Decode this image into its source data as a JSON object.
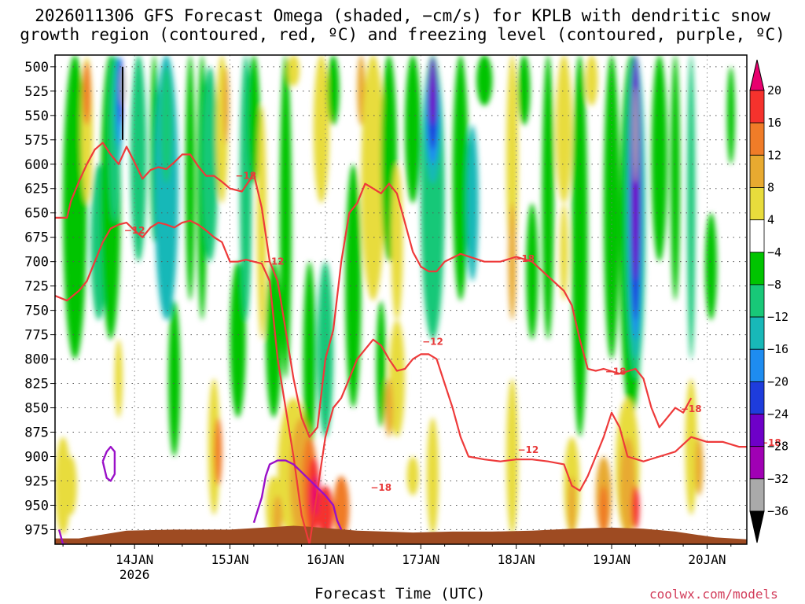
{
  "title_line1": "2026011306 GFS Forecast Omega (shaded, −cm/s) for KPLB with dendritic snow",
  "title_line2": "growth region (contoured, red, ºC) and freezing level (contoured, purple, ºC)",
  "x_axis_title": "Forecast Time (UTC)",
  "credit": "coolwx.com/models",
  "chart_data": {
    "type": "heatmap",
    "title": "2026011306 GFS Forecast Omega (shaded, −cm/s) for KPLB with dendritic snow growth region (contoured, red, ºC) and freezing level (contoured, purple, ºC)",
    "xlabel": "Forecast Time (UTC)",
    "ylabel": "",
    "x_ticks": [
      "14JAN",
      "15JAN",
      "16JAN",
      "17JAN",
      "18JAN",
      "19JAN",
      "20JAN"
    ],
    "x_tick_year": "2026",
    "x_range_hours": [
      -20,
      154
    ],
    "y_ticks": [
      500,
      525,
      550,
      575,
      600,
      625,
      650,
      675,
      700,
      725,
      750,
      775,
      800,
      825,
      850,
      875,
      900,
      925,
      950,
      975
    ],
    "y_range_hpa": [
      488,
      990
    ],
    "grid": true,
    "colorbar": {
      "labels": [
        "20",
        "16",
        "12",
        "8",
        "4",
        "−4",
        "−8",
        "−12",
        "−16",
        "−20",
        "−24",
        "−28",
        "−32",
        "−36"
      ],
      "colors": [
        "#e8006e",
        "#f5322d",
        "#f07c28",
        "#e8aa30",
        "#e8dc3c",
        "#ffffff",
        "#00c400",
        "#18c878",
        "#18b8b8",
        "#1e8cf0",
        "#1e3cdc",
        "#6e00c8",
        "#a000b4",
        "#aaaaaa",
        "#000000"
      ]
    },
    "contour_labels": [
      {
        "text": "−18",
        "x_hours": 28,
        "p": 612
      },
      {
        "text": "−12",
        "x_hours": 0,
        "p": 668
      },
      {
        "text": "−12",
        "x_hours": 35,
        "p": 700
      },
      {
        "text": "−18",
        "x_hours": 98,
        "p": 697
      },
      {
        "text": "−12",
        "x_hours": 75,
        "p": 782
      },
      {
        "text": "−18",
        "x_hours": 121,
        "p": 813
      },
      {
        "text": "−18",
        "x_hours": 140,
        "p": 851
      },
      {
        "text": "−12",
        "x_hours": 99,
        "p": 893
      },
      {
        "text": "−18",
        "x_hours": 62,
        "p": 932
      },
      {
        "text": "−18",
        "x_hours": 160,
        "p": 886
      }
    ],
    "dgz_contours": {
      "upper": [
        [
          -20,
          655
        ],
        [
          -17,
          655
        ],
        [
          -16,
          638
        ],
        [
          -14,
          618
        ],
        [
          -12,
          600
        ],
        [
          -10,
          585
        ],
        [
          -8,
          578
        ],
        [
          -6,
          590
        ],
        [
          -4,
          600
        ],
        [
          -2,
          582
        ],
        [
          0,
          598
        ],
        [
          2,
          615
        ],
        [
          4,
          606
        ],
        [
          6,
          603
        ],
        [
          8,
          605
        ],
        [
          10,
          598
        ],
        [
          12,
          590
        ],
        [
          14,
          590
        ],
        [
          16,
          602
        ],
        [
          18,
          612
        ],
        [
          20,
          612
        ],
        [
          22,
          618
        ],
        [
          24,
          625
        ],
        [
          27,
          628
        ],
        [
          30,
          610
        ],
        [
          32,
          645
        ],
        [
          34,
          700
        ],
        [
          36,
          720
        ],
        [
          38,
          770
        ],
        [
          40,
          820
        ],
        [
          42,
          860
        ],
        [
          44,
          880
        ],
        [
          46,
          870
        ],
        [
          48,
          800
        ],
        [
          50,
          770
        ],
        [
          52,
          700
        ],
        [
          54,
          650
        ],
        [
          56,
          640
        ],
        [
          58,
          620
        ],
        [
          60,
          625
        ],
        [
          62,
          630
        ],
        [
          64,
          620
        ],
        [
          66,
          630
        ],
        [
          68,
          660
        ],
        [
          70,
          690
        ],
        [
          72,
          705
        ],
        [
          74,
          710
        ],
        [
          76,
          710
        ],
        [
          78,
          700
        ],
        [
          82,
          692
        ],
        [
          88,
          700
        ],
        [
          92,
          700
        ],
        [
          96,
          695
        ],
        [
          100,
          700
        ],
        [
          104,
          715
        ],
        [
          108,
          730
        ],
        [
          110,
          745
        ],
        [
          112,
          780
        ],
        [
          114,
          810
        ],
        [
          116,
          812
        ],
        [
          118,
          810
        ],
        [
          122,
          815
        ],
        [
          126,
          810
        ],
        [
          128,
          820
        ],
        [
          130,
          850
        ],
        [
          132,
          870
        ],
        [
          134,
          860
        ],
        [
          136,
          850
        ],
        [
          138,
          855
        ],
        [
          140,
          840
        ]
      ],
      "lower": [
        [
          -20,
          735
        ],
        [
          -17,
          740
        ],
        [
          -14,
          730
        ],
        [
          -12,
          720
        ],
        [
          -10,
          700
        ],
        [
          -8,
          680
        ],
        [
          -6,
          666
        ],
        [
          -4,
          662
        ],
        [
          -2,
          660
        ],
        [
          0,
          668
        ],
        [
          2,
          675
        ],
        [
          4,
          665
        ],
        [
          6,
          660
        ],
        [
          8,
          662
        ],
        [
          10,
          665
        ],
        [
          12,
          660
        ],
        [
          14,
          658
        ],
        [
          16,
          662
        ],
        [
          18,
          668
        ],
        [
          20,
          675
        ],
        [
          22,
          680
        ],
        [
          24,
          700
        ],
        [
          26,
          700
        ],
        [
          28,
          698
        ],
        [
          30,
          700
        ],
        [
          32,
          702
        ],
        [
          34,
          720
        ],
        [
          36,
          800
        ],
        [
          38,
          850
        ],
        [
          40,
          900
        ],
        [
          42,
          960
        ],
        [
          44,
          990
        ],
        [
          46,
          935
        ],
        [
          48,
          880
        ],
        [
          50,
          850
        ],
        [
          52,
          840
        ],
        [
          54,
          820
        ],
        [
          56,
          800
        ],
        [
          58,
          790
        ],
        [
          60,
          780
        ],
        [
          62,
          786
        ],
        [
          64,
          800
        ],
        [
          66,
          812
        ],
        [
          68,
          810
        ],
        [
          70,
          800
        ],
        [
          72,
          795
        ],
        [
          74,
          795
        ],
        [
          76,
          800
        ],
        [
          78,
          825
        ],
        [
          80,
          850
        ],
        [
          82,
          880
        ],
        [
          84,
          900
        ],
        [
          88,
          903
        ],
        [
          92,
          905
        ],
        [
          96,
          903
        ],
        [
          100,
          903
        ],
        [
          104,
          905
        ],
        [
          108,
          908
        ],
        [
          110,
          930
        ],
        [
          112,
          935
        ],
        [
          114,
          920
        ],
        [
          116,
          900
        ],
        [
          118,
          880
        ],
        [
          120,
          855
        ],
        [
          122,
          870
        ],
        [
          124,
          900
        ],
        [
          128,
          905
        ],
        [
          132,
          900
        ],
        [
          136,
          895
        ],
        [
          140,
          880
        ],
        [
          144,
          885
        ],
        [
          148,
          885
        ],
        [
          152,
          890
        ],
        [
          154,
          890
        ]
      ]
    },
    "freezing_level_contours": [
      [
        [
          30,
          968
        ],
        [
          31,
          955
        ],
        [
          32,
          942
        ],
        [
          33,
          920
        ],
        [
          34,
          908
        ],
        [
          36,
          904
        ],
        [
          38,
          904
        ],
        [
          40,
          908
        ],
        [
          42,
          916
        ],
        [
          44,
          924
        ],
        [
          46,
          932
        ],
        [
          48,
          940
        ],
        [
          50,
          950
        ],
        [
          51,
          966
        ],
        [
          52,
          975
        ]
      ],
      [
        [
          -19,
          975
        ],
        [
          -18,
          990
        ],
        [
          -17,
          990
        ]
      ],
      [
        [
          -8,
          905
        ],
        [
          -7,
          895
        ],
        [
          -6,
          890
        ],
        [
          -5,
          895
        ],
        [
          -5,
          918
        ],
        [
          -6,
          925
        ],
        [
          -7,
          922
        ],
        [
          -8,
          905
        ]
      ]
    ]
  }
}
